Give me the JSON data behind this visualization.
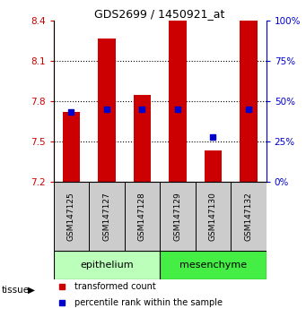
{
  "title": "GDS2699 / 1450921_at",
  "samples": [
    "GSM147125",
    "GSM147127",
    "GSM147128",
    "GSM147129",
    "GSM147130",
    "GSM147132"
  ],
  "red_bar_tops": [
    7.72,
    8.27,
    7.85,
    8.4,
    7.43,
    8.4
  ],
  "blue_marker_values": [
    7.72,
    7.74,
    7.74,
    7.74,
    7.535,
    7.74
  ],
  "y_min": 7.2,
  "y_max": 8.4,
  "y_ticks": [
    7.2,
    7.5,
    7.8,
    8.1,
    8.4
  ],
  "right_y_ticks": [
    0,
    25,
    50,
    75,
    100
  ],
  "bar_color": "#cc0000",
  "marker_color": "#0000cc",
  "groups": [
    {
      "label": "epithelium",
      "indices": [
        0,
        1,
        2
      ],
      "color": "#bbffbb"
    },
    {
      "label": "mesenchyme",
      "indices": [
        3,
        4,
        5
      ],
      "color": "#44ee44"
    }
  ],
  "tissue_label": "tissue",
  "legend_items": [
    {
      "label": "transformed count",
      "color": "#cc0000"
    },
    {
      "label": "percentile rank within the sample",
      "color": "#0000cc"
    }
  ],
  "bar_width": 0.5,
  "sample_bg_color": "#cccccc",
  "left_tick_color": "#cc0000",
  "right_tick_color": "#0000cc",
  "grid_color": "black",
  "grid_style": "dotted",
  "grid_lw": 0.8
}
